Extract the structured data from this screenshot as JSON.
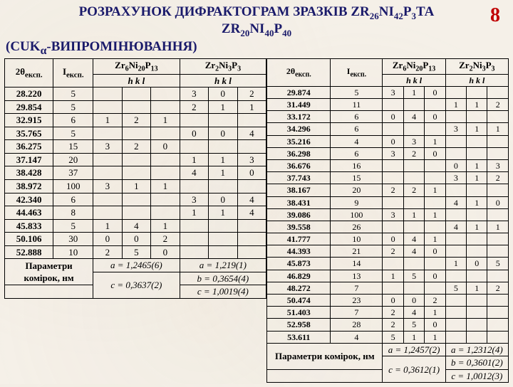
{
  "page_number": "8",
  "title_l1": "РОЗРАХУНОК ДИФРАКТОГРАМ ЗРАЗКІВ ZR",
  "title_compound1_sub": "26",
  "title_l1b": "NI",
  "title_compound1_sub2": "42",
  "title_l1c": "P",
  "title_compound1_sub3": "3",
  "title_l1d": "ТА",
  "title_l2": "ZR",
  "title_compound2_sub": "20",
  "title_l2b": "NI",
  "title_compound2_sub2": "40",
  "title_l2c": "P",
  "title_compound2_sub3": "40",
  "title_l3": "(CUK",
  "title_alpha": "α",
  "title_l3b": "-ВИПРОМІНЮВАННЯ)",
  "col_2theta": "2θ",
  "col_eksp": "експ.",
  "col_I": "I",
  "col_hkl": "h  k  l",
  "phase1": "Zr",
  "phase1_s1": "6",
  "phase1_b": "Ni",
  "phase1_s2": "20",
  "phase1_c": "P",
  "phase1_s3": "13",
  "phase2": "Zr",
  "phase2_s1": "2",
  "phase2_b": "Ni",
  "phase2_s2": "3",
  "phase2_c": "P",
  "phase2_s3": "3",
  "left_rows": [
    [
      "28.220",
      "5",
      "",
      "",
      "",
      "3",
      "0",
      "2"
    ],
    [
      "29.854",
      "5",
      "",
      "",
      "",
      "2",
      "1",
      "1"
    ],
    [
      "32.915",
      "6",
      "1",
      "2",
      "1",
      "",
      "",
      ""
    ],
    [
      "35.765",
      "5",
      "",
      "",
      "",
      "0",
      "0",
      "4"
    ],
    [
      "36.275",
      "15",
      "3",
      "2",
      "0",
      "",
      "",
      ""
    ],
    [
      "37.147",
      "20",
      "",
      "",
      "",
      "1",
      "1",
      "3"
    ],
    [
      "38.428",
      "37",
      "",
      "",
      "",
      "4",
      "1",
      "0"
    ],
    [
      "38.972",
      "100",
      "3",
      "1",
      "1",
      "",
      "",
      ""
    ],
    [
      "42.340",
      "6",
      "",
      "",
      "",
      "3",
      "0",
      "4"
    ],
    [
      "44.463",
      "8",
      "",
      "",
      "",
      "1",
      "1",
      "4"
    ],
    [
      "45.833",
      "5",
      "1",
      "4",
      "1",
      "",
      "",
      ""
    ],
    [
      "50.106",
      "30",
      "0",
      "0",
      "2",
      "",
      "",
      ""
    ],
    [
      "52.888",
      "10",
      "2",
      "5",
      "0",
      "",
      "",
      ""
    ]
  ],
  "params_label": "Параметри",
  "cells_label": "комірок, нм",
  "a_left": "a = 1,2465(6)",
  "c_left": "c = 0,3637(2)",
  "a_left2": "a = 1,219(1)",
  "b_left2": "b = 0,3654(4)",
  "c_left2": "c = 1,0019(4)",
  "right_rows": [
    [
      "29.874",
      "5",
      "3",
      "1",
      "0",
      "",
      "",
      ""
    ],
    [
      "31.449",
      "11",
      "",
      "",
      "",
      "1",
      "1",
      "2"
    ],
    [
      "33.172",
      "6",
      "0",
      "4",
      "0",
      "",
      "",
      ""
    ],
    [
      "34.296",
      "6",
      "",
      "",
      "",
      "3",
      "1",
      "1"
    ],
    [
      "35.216",
      "4",
      "0",
      "3",
      "1",
      "",
      "",
      ""
    ],
    [
      "36.298",
      "6",
      "3",
      "2",
      "0",
      "",
      "",
      ""
    ],
    [
      "36.676",
      "16",
      "",
      "",
      "",
      "0",
      "1",
      "3"
    ],
    [
      "37.743",
      "15",
      "",
      "",
      "",
      "3",
      "1",
      "2"
    ],
    [
      "38.167",
      "20",
      "2",
      "2",
      "1",
      "",
      "",
      ""
    ],
    [
      "38.431",
      "9",
      "",
      "",
      "",
      "4",
      "1",
      "0"
    ],
    [
      "39.086",
      "100",
      "3",
      "1",
      "1",
      "",
      "",
      ""
    ],
    [
      "39.558",
      "26",
      "",
      "",
      "",
      "4",
      "1",
      "1"
    ],
    [
      "41.777",
      "10",
      "0",
      "4",
      "1",
      "",
      "",
      ""
    ],
    [
      "44.393",
      "21",
      "2",
      "4",
      "0",
      "",
      "",
      ""
    ],
    [
      "45.873",
      "14",
      "",
      "",
      "",
      "1",
      "0",
      "5"
    ],
    [
      "46.829",
      "13",
      "1",
      "5",
      "0",
      "",
      "",
      ""
    ],
    [
      "48.272",
      "7",
      "",
      "",
      "",
      "5",
      "1",
      "2"
    ],
    [
      "50.474",
      "23",
      "0",
      "0",
      "2",
      "",
      "",
      ""
    ],
    [
      "51.403",
      "7",
      "2",
      "4",
      "1",
      "",
      "",
      ""
    ],
    [
      "52.958",
      "28",
      "2",
      "5",
      "0",
      "",
      "",
      ""
    ],
    [
      "53.611",
      "4",
      "5",
      "1",
      "1",
      "",
      "",
      ""
    ]
  ],
  "params_right_label": "Параметри комірок, нм",
  "a_right": "a = 1,2457(2)",
  "c_right": "c = 0,3612(1)",
  "a_right2": "a = 1,2312(4)",
  "b_right2": "b = 0,3601(2)",
  "c_right2": "c = 1,0012(3)"
}
